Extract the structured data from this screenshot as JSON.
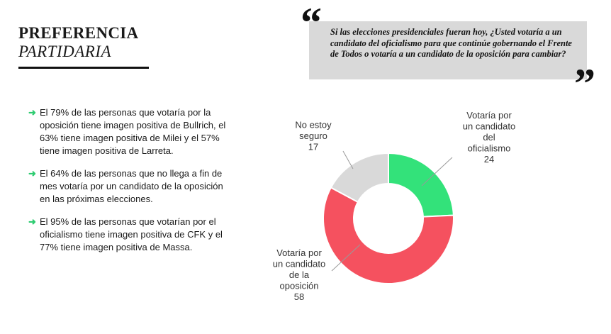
{
  "header": {
    "title_line1": "PREFERENCIA",
    "title_line2": "PARTIDARIA"
  },
  "bullets": [
    {
      "icon": "arrow-right-icon",
      "text": "El 79% de las personas que votaría por la oposición tiene imagen positiva de Bullrich, el 63% tiene imagen positiva de Milei y el 57% tiene imagen positiva de Larreta."
    },
    {
      "icon": "arrow-right-icon",
      "text": "El 64% de las personas que no llega a fin de mes votaría por un candidato de la oposición en las próximas elecciones."
    },
    {
      "icon": "arrow-right-icon",
      "text": "El 95% de las personas que votarían por el oficialismo tiene imagen positiva de CFK y el 77% tiene imagen positiva de Massa."
    }
  ],
  "question": {
    "open_quote": "“",
    "close_quote": "”",
    "text": "Si las elecciones presidenciales fueran hoy, ¿Usted votaría a un candidato del oficialismo para que continúe gobernando el Frente de Todos o votaría a un candidato de la oposición para cambiar?"
  },
  "colors": {
    "accent_arrow": "#2ecc71",
    "question_bg": "#d9d9d9"
  },
  "chart_data": {
    "type": "pie",
    "style": "donut",
    "slices": [
      {
        "label_lines": [
          "Votaría por",
          "un candidato",
          "del",
          "oficialismo"
        ],
        "value": 24,
        "color": "#33e27a"
      },
      {
        "label_lines": [
          "Votaría por",
          "un candidato",
          "de la",
          "oposición"
        ],
        "value": 58,
        "color": "#f5515f"
      },
      {
        "label_lines": [
          "No estoy",
          "seguro"
        ],
        "value": 17,
        "color": "#d9d9d9"
      }
    ],
    "start": "top",
    "direction": "clockwise",
    "legend": "none",
    "value_labels": "outside"
  }
}
